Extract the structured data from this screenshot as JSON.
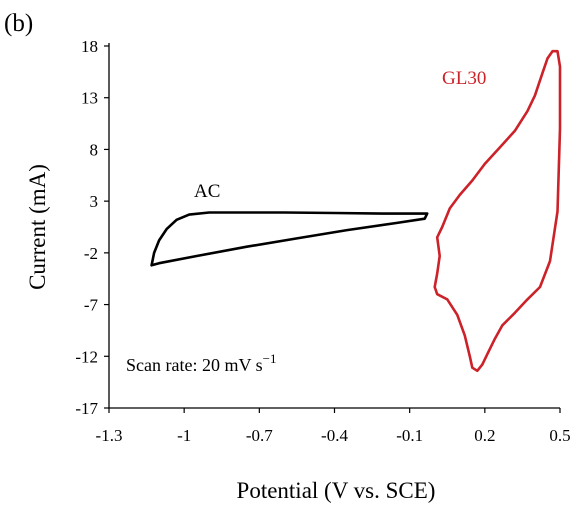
{
  "panel_label": "(b)",
  "chart_data": {
    "type": "line",
    "xlabel": "Potential (V vs. SCE)",
    "ylabel": "Current (mA)",
    "xlim": [
      -1.3,
      0.5
    ],
    "ylim": [
      -17,
      18
    ],
    "xticks": [
      -1.3,
      -1,
      -0.7,
      -0.4,
      -0.1,
      0.2,
      0.5
    ],
    "yticks": [
      -17,
      -12,
      -7,
      -2,
      3,
      8,
      13,
      18
    ],
    "xtick_labels": [
      "-1.3",
      "-1",
      "-0.7",
      "-0.4",
      "-0.1",
      "0.2",
      "0.5"
    ],
    "ytick_labels": [
      "-17",
      "-12",
      "-7",
      "-2",
      "3",
      "8",
      "13",
      "18"
    ],
    "grid": false,
    "legend": "none",
    "annotation": {
      "text": "Scan rate: 20 mV s",
      "superscript": "−1"
    },
    "series": [
      {
        "name": "AC",
        "color": "#000000",
        "points": [
          [
            -1.13,
            -3.2
          ],
          [
            -1.12,
            -2.0
          ],
          [
            -1.1,
            -0.8
          ],
          [
            -1.07,
            0.3
          ],
          [
            -1.03,
            1.2
          ],
          [
            -0.98,
            1.7
          ],
          [
            -0.9,
            1.9
          ],
          [
            -0.8,
            1.9
          ],
          [
            -0.6,
            1.9
          ],
          [
            -0.4,
            1.85
          ],
          [
            -0.2,
            1.8
          ],
          [
            -0.08,
            1.8
          ],
          [
            -0.03,
            1.8
          ],
          [
            -0.04,
            1.3
          ],
          [
            -0.15,
            0.9
          ],
          [
            -0.35,
            0.2
          ],
          [
            -0.55,
            -0.6
          ],
          [
            -0.75,
            -1.4
          ],
          [
            -0.95,
            -2.3
          ],
          [
            -1.1,
            -3.0
          ],
          [
            -1.13,
            -3.2
          ]
        ]
      },
      {
        "name": "GL30",
        "color": "#cc2229",
        "points": [
          [
            0.0,
            -5.3
          ],
          [
            0.01,
            -4.0
          ],
          [
            0.02,
            -2.3
          ],
          [
            0.01,
            -0.5
          ],
          [
            0.03,
            0.5
          ],
          [
            0.06,
            2.3
          ],
          [
            0.1,
            3.6
          ],
          [
            0.15,
            5.0
          ],
          [
            0.2,
            6.6
          ],
          [
            0.26,
            8.2
          ],
          [
            0.32,
            9.8
          ],
          [
            0.37,
            11.7
          ],
          [
            0.4,
            13.2
          ],
          [
            0.43,
            15.4
          ],
          [
            0.45,
            16.8
          ],
          [
            0.47,
            17.5
          ],
          [
            0.49,
            17.5
          ],
          [
            0.5,
            16.0
          ],
          [
            0.5,
            10.0
          ],
          [
            0.49,
            2.0
          ],
          [
            0.46,
            -2.8
          ],
          [
            0.42,
            -5.3
          ],
          [
            0.37,
            -6.5
          ],
          [
            0.32,
            -7.8
          ],
          [
            0.27,
            -9.0
          ],
          [
            0.24,
            -10.3
          ],
          [
            0.21,
            -11.8
          ],
          [
            0.19,
            -12.8
          ],
          [
            0.17,
            -13.4
          ],
          [
            0.15,
            -13.1
          ],
          [
            0.14,
            -12.0
          ],
          [
            0.12,
            -10.0
          ],
          [
            0.09,
            -8.0
          ],
          [
            0.05,
            -6.5
          ],
          [
            0.01,
            -6.0
          ],
          [
            0.0,
            -5.3
          ]
        ]
      }
    ]
  }
}
